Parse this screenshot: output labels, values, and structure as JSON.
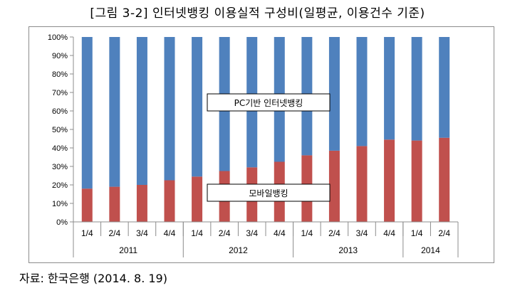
{
  "title": "[그림 3-2] 인터넷뱅킹 이용실적 구성비(일평균, 이용건수 기준)",
  "source": "자료: 한국은행 (2014. 8. 19)",
  "chart_data": {
    "type": "bar",
    "stacked": true,
    "categories": [
      "1/4",
      "2/4",
      "3/4",
      "4/4",
      "1/4",
      "2/4",
      "3/4",
      "4/4",
      "1/4",
      "2/4",
      "3/4",
      "4/4",
      "1/4",
      "2/4"
    ],
    "year_groups": [
      {
        "label": "2011",
        "count": 4
      },
      {
        "label": "2012",
        "count": 4
      },
      {
        "label": "2013",
        "count": 4
      },
      {
        "label": "2014",
        "count": 2
      }
    ],
    "series": [
      {
        "name": "모바일뱅킹",
        "color": "#c0504d",
        "values": [
          18,
          19,
          20,
          22.5,
          24.5,
          27.5,
          29.5,
          32.5,
          36,
          38.5,
          41,
          44.5,
          44,
          45.5
        ]
      },
      {
        "name": "PC기반 인터넷뱅킹",
        "color": "#4f81bd",
        "values": [
          82,
          81,
          80,
          77.5,
          75.5,
          72.5,
          70.5,
          67.5,
          64,
          61.5,
          59,
          55.5,
          56,
          54.5
        ]
      }
    ],
    "yticks": [
      "0%",
      "10%",
      "20%",
      "30%",
      "40%",
      "50%",
      "60%",
      "70%",
      "80%",
      "90%",
      "100%"
    ],
    "ylim": [
      0,
      100
    ],
    "grid": false,
    "legend": "inline labels"
  }
}
